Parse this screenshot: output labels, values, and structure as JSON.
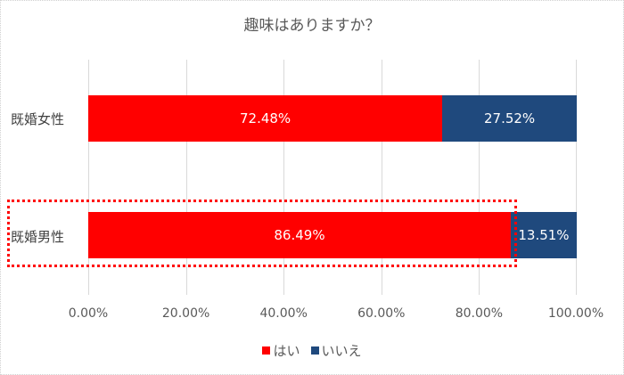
{
  "chart_data": {
    "type": "bar",
    "orientation": "horizontal",
    "stacked": true,
    "percent_stacked": true,
    "title": "趣味はありますか？",
    "categories": [
      "既婚女性",
      "既婚男性"
    ],
    "series": [
      {
        "name": "はい",
        "color": "#FF0000",
        "values": [
          72.48,
          86.49
        ],
        "labels": [
          "72.48%",
          "86.49%"
        ]
      },
      {
        "name": "いいえ",
        "color": "#1F497D",
        "values": [
          27.52,
          13.51
        ],
        "labels": [
          "27.52%",
          "13.51%"
        ]
      }
    ],
    "xlabel": "",
    "ylabel": "",
    "xlim": [
      0,
      100
    ],
    "x_ticks": [
      "0.00%",
      "20.00%",
      "40.00%",
      "60.00%",
      "80.00%",
      "100.00%"
    ],
    "grid": true,
    "legend_position": "bottom",
    "annotations": [
      {
        "type": "dotted-rectangle",
        "color": "#FF0000",
        "target": "既婚男性 はい"
      }
    ]
  },
  "legend": {
    "items": [
      {
        "label": "はい",
        "color": "#FF0000"
      },
      {
        "label": "いいえ",
        "color": "#1F497D"
      }
    ]
  }
}
